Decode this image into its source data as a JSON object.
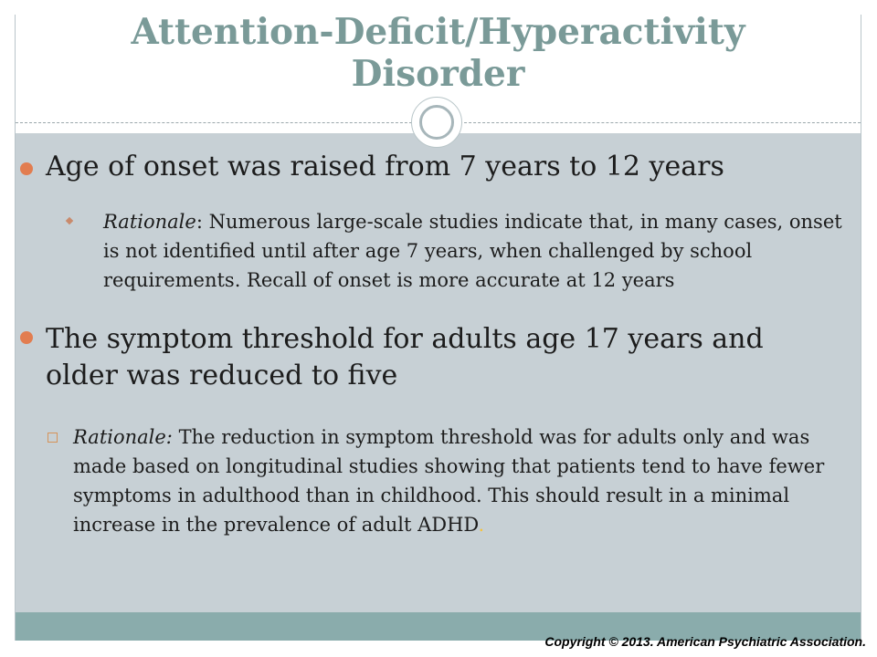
{
  "slide": {
    "title": "Attention-Deficit/Hyperactivity Disorder",
    "bullets": [
      {
        "text": "Age of onset was raised from 7 years to 12 years",
        "sub": {
          "label": "Rationale",
          "separator": ":",
          "text": " Numerous large-scale studies indicate that, in many cases, onset is not identified until after age 7 years, when challenged by school requirements. Recall of onset is more accurate at 12 years"
        }
      },
      {
        "text": "The symptom threshold for adults age 17 years and older was reduced to five",
        "sub": {
          "label": "Rationale:",
          "text": " The reduction in symptom threshold was for adults only and was made based on longitudinal studies showing that patients tend to have fewer symptoms in adulthood than in childhood. This should result in a minimal increase in the prevalence of adult ADHD",
          "end": "."
        }
      }
    ],
    "copyright": "Copyright © 2013.  American Psychiatric Association."
  },
  "colors": {
    "title": "#7a9a98",
    "content_background": "#c7d0d5",
    "footer_bar": "#8aacac",
    "bullet_accent": "#e27d50"
  },
  "icons": {
    "title_separator": "circle-ornament-icon",
    "bullet_main": "filled-circle-bullet-icon",
    "bullet_sub_1": "diamond-bullet-icon",
    "bullet_sub_2": "hollow-square-bullet-icon"
  }
}
